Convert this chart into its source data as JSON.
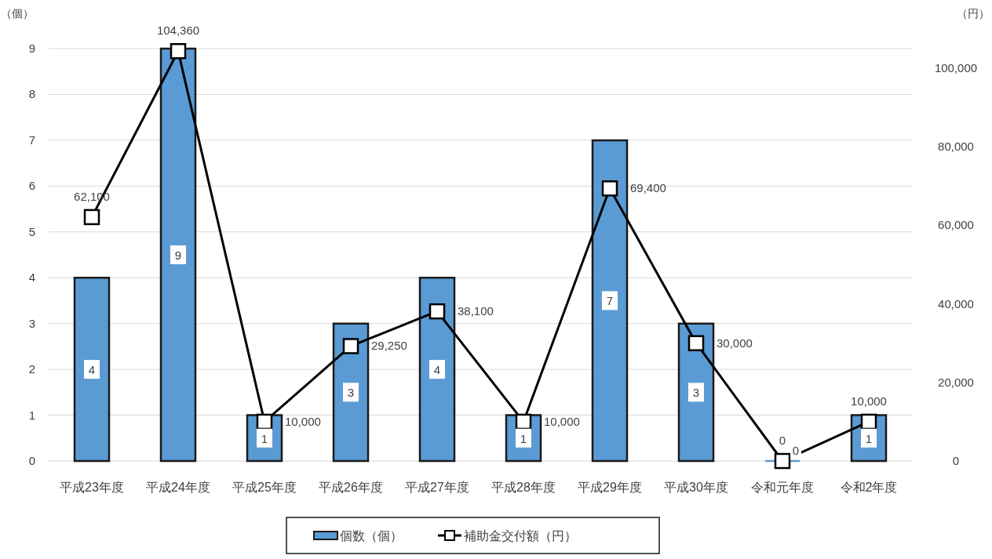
{
  "chart_data": {
    "type": "bar",
    "ylabel": "（個）",
    "y2label": "（円）",
    "categories": [
      "平成23年度",
      "平成24年度",
      "平成25年度",
      "平成26年度",
      "平成27年度",
      "平成28年度",
      "平成29年度",
      "平成30年度",
      "令和元年度",
      "令和2年度"
    ],
    "ylim": [
      0,
      9
    ],
    "yticks": [
      0,
      1,
      2,
      3,
      4,
      5,
      6,
      7,
      8,
      9
    ],
    "y2lim": [
      0,
      105000
    ],
    "y2ticks": [
      {
        "value": 0,
        "label": "0"
      },
      {
        "value": 20000,
        "label": "20,000"
      },
      {
        "value": 40000,
        "label": "40,000"
      },
      {
        "value": 60000,
        "label": "60,000"
      },
      {
        "value": 80000,
        "label": "80,000"
      },
      {
        "value": 100000,
        "label": "100,000"
      }
    ],
    "grid": "y",
    "legend": "bottom",
    "series": [
      {
        "name": "個数（個）",
        "color": "#5b9bd5",
        "values": [
          4,
          9,
          1,
          3,
          4,
          1,
          7,
          3,
          0,
          1
        ],
        "value_labels": [
          "4",
          "9",
          "1",
          "3",
          "4",
          "1",
          "7",
          "3",
          "0",
          "1"
        ]
      },
      {
        "name": "補助金交付額（円）",
        "type": "line",
        "axis": "y2",
        "color": "#000000",
        "marker": "square",
        "values": [
          62100,
          104360,
          10000,
          29250,
          38100,
          10000,
          69400,
          30000,
          0,
          10000
        ],
        "value_labels": [
          "62,100",
          "104,360",
          "10,000",
          "29,250",
          "38,100",
          "10,000",
          "69,400",
          "30,000",
          "0",
          "10,000"
        ]
      }
    ]
  }
}
